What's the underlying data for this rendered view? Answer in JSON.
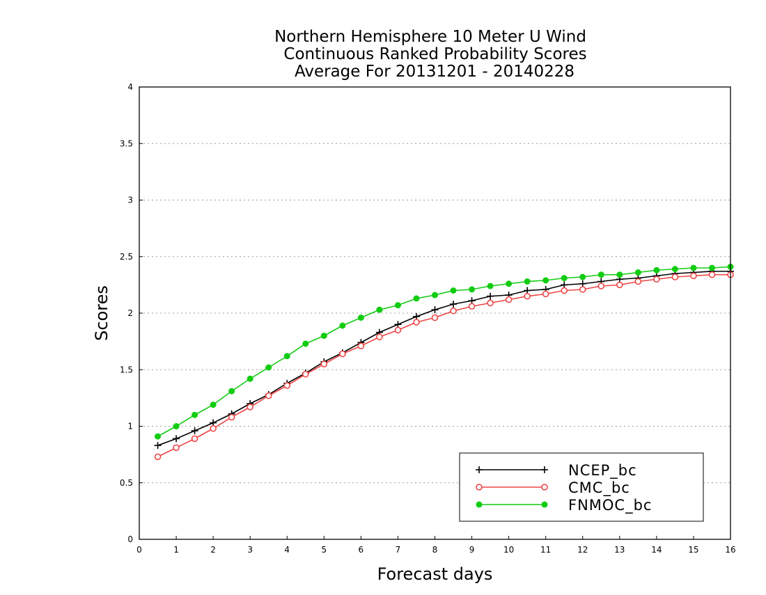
{
  "chart_data": {
    "type": "line",
    "title_lines": [
      "Northern Hemisphere 10 Meter U Wind",
      "Continuous Ranked Probability Scores",
      "Average For 20131201 - 20140228"
    ],
    "xlabel": "Forecast days",
    "ylabel": "Scores",
    "xlim": [
      0,
      16
    ],
    "ylim": [
      0,
      4
    ],
    "xticks": [
      0,
      1,
      2,
      3,
      4,
      5,
      6,
      7,
      8,
      9,
      10,
      11,
      12,
      13,
      14,
      15,
      16
    ],
    "yticks": [
      0,
      0.5,
      1,
      1.5,
      2,
      2.5,
      3,
      3.5,
      4
    ],
    "ytick_labels": [
      "0",
      "0.5",
      "1",
      "1.5",
      "2",
      "2.5",
      "3",
      "3.5",
      "4"
    ],
    "grid": "horizontal dotted",
    "legend_position": "bottom-right",
    "x": [
      0.5,
      1,
      1.5,
      2,
      2.5,
      3,
      3.5,
      4,
      4.5,
      5,
      5.5,
      6,
      6.5,
      7,
      7.5,
      8,
      8.5,
      9,
      9.5,
      10,
      10.5,
      11,
      11.5,
      12,
      12.5,
      13,
      13.5,
      14,
      14.5,
      15,
      15.5,
      16
    ],
    "series": [
      {
        "name": "NCEP_bc",
        "color": "#000000",
        "marker": "plus",
        "values": [
          0.83,
          0.89,
          0.96,
          1.03,
          1.11,
          1.2,
          1.28,
          1.38,
          1.47,
          1.57,
          1.65,
          1.74,
          1.83,
          1.9,
          1.97,
          2.03,
          2.08,
          2.11,
          2.15,
          2.16,
          2.2,
          2.21,
          2.25,
          2.26,
          2.28,
          2.3,
          2.31,
          2.33,
          2.35,
          2.36,
          2.37,
          2.37
        ]
      },
      {
        "name": "CMC_bc",
        "color": "#ee4444",
        "marker": "open-circle",
        "values": [
          0.73,
          0.81,
          0.89,
          0.98,
          1.08,
          1.17,
          1.27,
          1.36,
          1.46,
          1.55,
          1.64,
          1.71,
          1.79,
          1.85,
          1.92,
          1.96,
          2.02,
          2.06,
          2.09,
          2.12,
          2.15,
          2.17,
          2.2,
          2.21,
          2.24,
          2.25,
          2.28,
          2.3,
          2.32,
          2.33,
          2.34,
          2.34
        ]
      },
      {
        "name": "FNMOC_bc",
        "color": "#11cc11",
        "marker": "filled-circle",
        "values": [
          0.91,
          1.0,
          1.1,
          1.19,
          1.31,
          1.42,
          1.52,
          1.62,
          1.73,
          1.8,
          1.89,
          1.96,
          2.03,
          2.07,
          2.13,
          2.16,
          2.2,
          2.21,
          2.24,
          2.26,
          2.28,
          2.29,
          2.31,
          2.32,
          2.34,
          2.34,
          2.36,
          2.38,
          2.39,
          2.4,
          2.4,
          2.41
        ]
      }
    ]
  }
}
